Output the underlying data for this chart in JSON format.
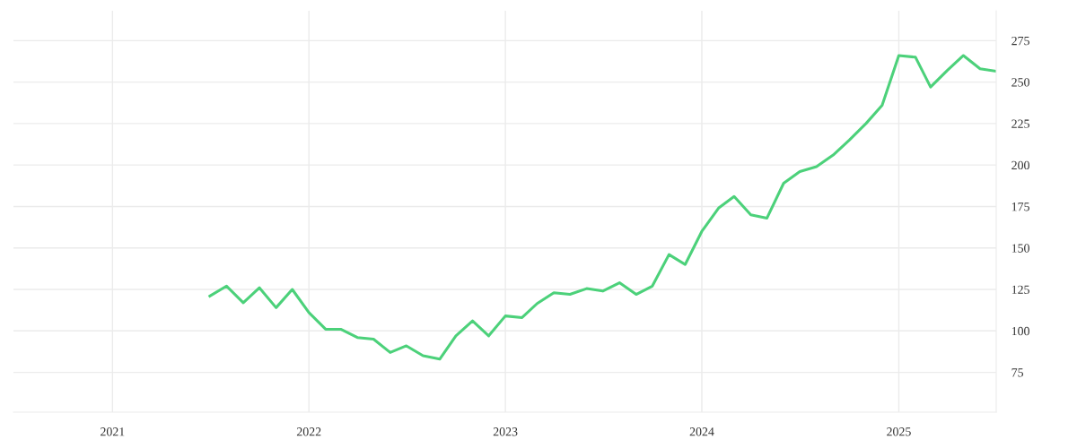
{
  "chart_data": {
    "type": "line",
    "x": [
      "2021-07",
      "2021-08",
      "2021-09",
      "2021-10",
      "2021-11",
      "2021-12",
      "2022-01",
      "2022-02",
      "2022-03",
      "2022-04",
      "2022-05",
      "2022-06",
      "2022-07",
      "2022-08",
      "2022-09",
      "2022-10",
      "2022-11",
      "2022-12",
      "2023-01",
      "2023-02",
      "2023-03",
      "2023-04",
      "2023-05",
      "2023-06",
      "2023-07",
      "2023-08",
      "2023-09",
      "2023-10",
      "2023-11",
      "2023-12",
      "2024-01",
      "2024-02",
      "2024-03",
      "2024-04",
      "2024-05",
      "2024-06",
      "2024-07",
      "2024-08",
      "2024-09",
      "2024-10",
      "2024-11",
      "2024-12",
      "2025-01",
      "2025-02",
      "2025-03",
      "2025-04",
      "2025-05",
      "2025-06",
      "2025-07"
    ],
    "series": [
      {
        "color": "#4cd17a",
        "values": [
          121,
          127,
          117,
          126,
          114,
          125,
          111,
          101,
          101,
          96,
          95,
          87,
          91,
          85,
          83,
          97,
          106,
          97,
          109,
          108,
          116.5,
          123,
          122,
          125.5,
          124,
          129,
          122,
          127,
          146,
          140,
          160,
          174,
          181,
          170,
          168,
          189,
          196,
          199,
          206,
          215,
          225,
          236,
          266,
          265,
          247,
          257,
          266,
          258,
          256.5
        ]
      }
    ],
    "xlim": [
      "2020-07",
      "2025-07"
    ],
    "xticks": [
      {
        "value": "2021-01",
        "label": "2021"
      },
      {
        "value": "2022-01",
        "label": "2022"
      },
      {
        "value": "2023-01",
        "label": "2023"
      },
      {
        "value": "2024-01",
        "label": "2024"
      },
      {
        "value": "2025-01",
        "label": "2025"
      }
    ],
    "ylim": [
      51,
      293
    ],
    "yticks": [
      75,
      100,
      125,
      150,
      175,
      200,
      225,
      250,
      275
    ],
    "grid": true,
    "marker": "none",
    "line_style": "solid"
  }
}
